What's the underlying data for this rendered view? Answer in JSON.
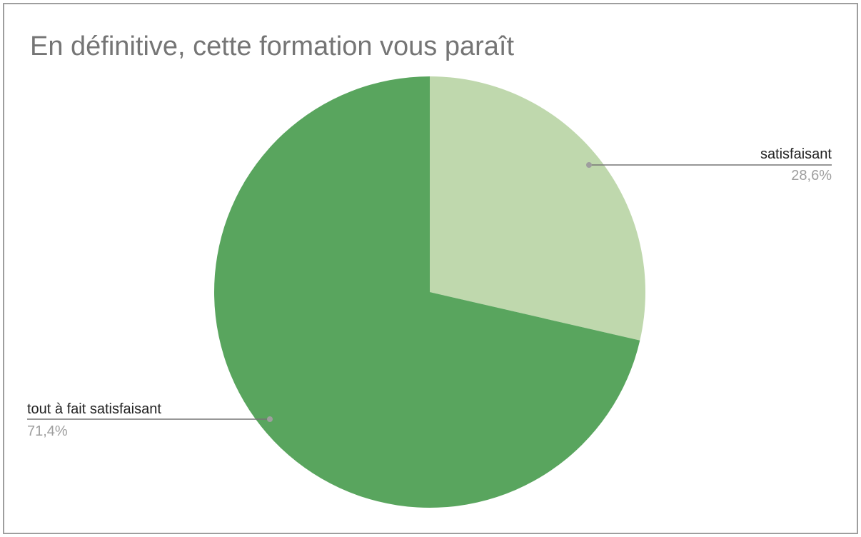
{
  "chart_data": {
    "type": "pie",
    "title": "En définitive, cette formation vous paraît",
    "slices": [
      {
        "label": "satisfaisant",
        "value": 28.6,
        "value_label": "28,6%",
        "color": "#bfd8ad"
      },
      {
        "label": "tout à fait satisfaisant",
        "value": 71.4,
        "value_label": "71,4%",
        "color": "#59a55e"
      }
    ],
    "start": "12 o'clock",
    "direction": "clockwise",
    "legend": "none",
    "label_style": "outside labels with leader lines"
  },
  "colors": {
    "leader_line": "#757575",
    "title_text": "#757575",
    "border": "#9e9e9e"
  }
}
